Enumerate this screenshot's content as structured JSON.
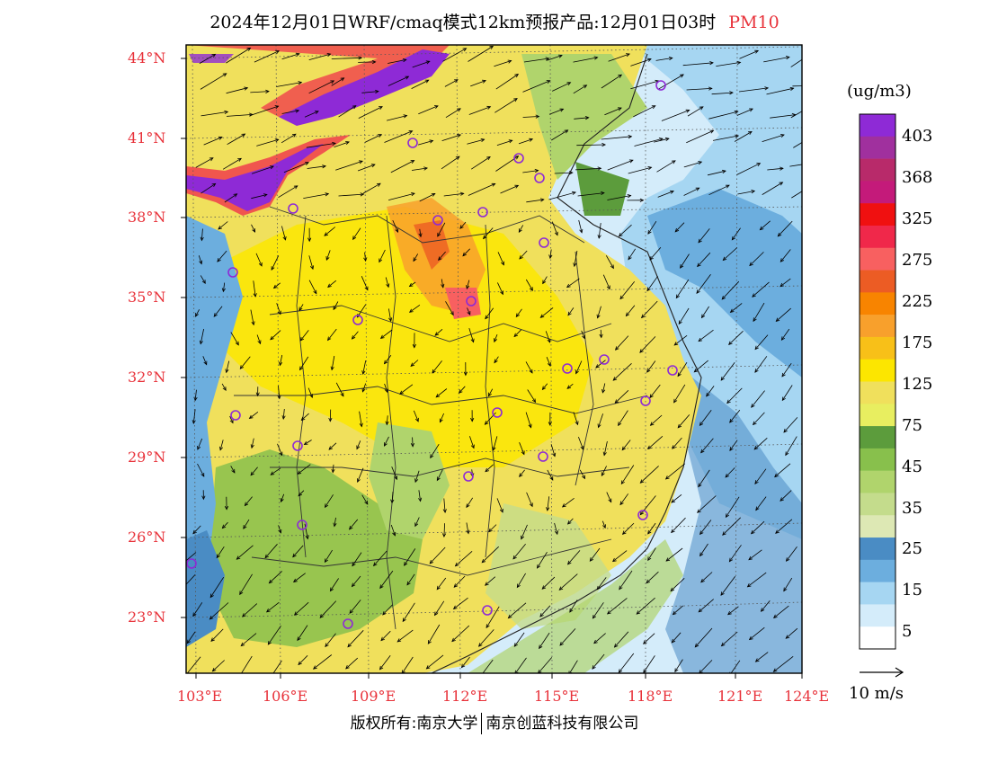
{
  "header": {
    "title": "2024年12月01日WRF/cmaq模式12km预报产品:12月01日03时",
    "pollutant": "PM10"
  },
  "axes": {
    "lat_labels": [
      "44°N",
      "41°N",
      "38°N",
      "35°N",
      "32°N",
      "29°N",
      "26°N",
      "23°N"
    ],
    "lon_labels": [
      "103°E",
      "106°E",
      "109°E",
      "112°E",
      "115°E",
      "118°E",
      "121°E",
      "124°E"
    ]
  },
  "legend": {
    "unit": "(ug/m3)",
    "labels": [
      "403",
      "368",
      "325",
      "275",
      "225",
      "175",
      "125",
      "75",
      "45",
      "35",
      "25",
      "15",
      "5"
    ],
    "colors": [
      "#8e2ad6",
      "#a0309e",
      "#b82a6a",
      "#c41a7a",
      "#f01010",
      "#f0284a",
      "#f86060",
      "#ec5c24",
      "#f88400",
      "#f8a02c",
      "#f8c018",
      "#fce600",
      "#f0e05c",
      "#e8ee60",
      "#5c9c3c",
      "#88c04c",
      "#b0d46c",
      "#c4dc8c",
      "#dde8b4",
      "#4a8cc4",
      "#6caede",
      "#a6d6f2",
      "#d4ecfa",
      "#ffffff"
    ]
  },
  "wind": {
    "scale_label": "10 m/s"
  },
  "footer": {
    "left": "版权所有:南京大学",
    "right": "南京创蓝科技有限公司"
  }
}
